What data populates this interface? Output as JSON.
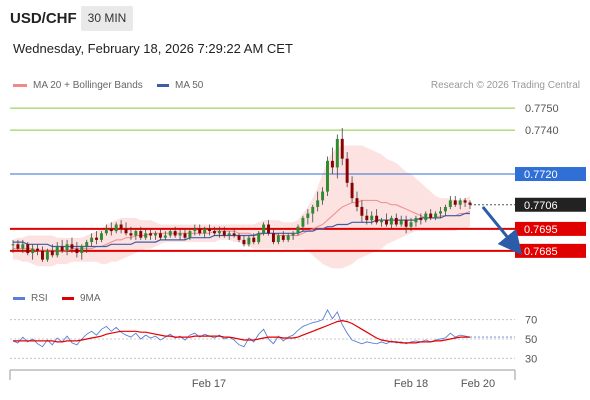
{
  "header": {
    "pair": "USD/CHF",
    "timeframe": "30 MIN",
    "datetime": "Wednesday, February 18, 2026 7:29:22 AM CET"
  },
  "legend": {
    "ma20_label": "MA 20 + Bollinger Bands",
    "ma20_color": "#f08a8a",
    "ma50_label": "MA 50",
    "ma50_color": "#3a5fa8",
    "copyright": "Research © 2026 Trading Central"
  },
  "rsi_legend": {
    "rsi_label": "RSI",
    "rsi_color": "#5b7fd6",
    "ma_label": "9MA",
    "ma_color": "#e00000"
  },
  "chart_data": [
    {
      "type": "candlestick",
      "ylim": [
        0.7674,
        0.7756
      ],
      "x_ticks": [
        "Feb 17",
        "Feb 18",
        "Feb 20"
      ],
      "levels": [
        {
          "value": 0.775,
          "label": "0.7750",
          "color": "#8cc63f",
          "style": "resistance"
        },
        {
          "value": 0.774,
          "label": "0.7740",
          "color": "#8cc63f",
          "style": "resistance"
        },
        {
          "value": 0.772,
          "label": "0.7720",
          "color": "#2f6fd6",
          "style": "pivot"
        },
        {
          "value": 0.7706,
          "label": "0.7706",
          "color": "#222222",
          "style": "last"
        },
        {
          "value": 0.7695,
          "label": "0.7695",
          "color": "#e00000",
          "style": "support"
        },
        {
          "value": 0.7685,
          "label": "0.7685",
          "color": "#e00000",
          "style": "support"
        }
      ],
      "arrow": {
        "from": [
          95,
          0.7705
        ],
        "to": [
          99,
          0.7686
        ],
        "color": "#2a5caa"
      },
      "candles": [
        [
          0.7688,
          0.769,
          0.7684,
          0.7688
        ],
        [
          0.7688,
          0.769,
          0.7685,
          0.7686
        ],
        [
          0.7686,
          0.769,
          0.7684,
          0.7688
        ],
        [
          0.7688,
          0.7689,
          0.7683,
          0.7684
        ],
        [
          0.7684,
          0.7688,
          0.7681,
          0.7686
        ],
        [
          0.7686,
          0.7688,
          0.7683,
          0.7685
        ],
        [
          0.7685,
          0.7687,
          0.768,
          0.7681
        ],
        [
          0.7681,
          0.7686,
          0.768,
          0.7685
        ],
        [
          0.7685,
          0.7688,
          0.7682,
          0.7683
        ],
        [
          0.7683,
          0.7689,
          0.7682,
          0.7687
        ],
        [
          0.7687,
          0.769,
          0.7684,
          0.7685
        ],
        [
          0.7685,
          0.769,
          0.7683,
          0.7688
        ],
        [
          0.7688,
          0.7691,
          0.7684,
          0.7686
        ],
        [
          0.7686,
          0.7689,
          0.7682,
          0.7684
        ],
        [
          0.7684,
          0.7688,
          0.7681,
          0.7687
        ],
        [
          0.7687,
          0.769,
          0.7684,
          0.7689
        ],
        [
          0.7689,
          0.7693,
          0.7687,
          0.7691
        ],
        [
          0.7691,
          0.7694,
          0.7688,
          0.769
        ],
        [
          0.769,
          0.7694,
          0.7689,
          0.7693
        ],
        [
          0.7693,
          0.7697,
          0.7692,
          0.7695
        ],
        [
          0.7695,
          0.7698,
          0.7692,
          0.7694
        ],
        [
          0.7694,
          0.7698,
          0.7693,
          0.7697
        ],
        [
          0.7697,
          0.7699,
          0.7693,
          0.7695
        ],
        [
          0.7695,
          0.7698,
          0.7692,
          0.7693
        ],
        [
          0.7693,
          0.7696,
          0.769,
          0.7692
        ],
        [
          0.7692,
          0.7695,
          0.769,
          0.7694
        ],
        [
          0.7694,
          0.7696,
          0.769,
          0.7691
        ],
        [
          0.7691,
          0.7695,
          0.769,
          0.7693
        ],
        [
          0.7693,
          0.7695,
          0.769,
          0.7692
        ],
        [
          0.7692,
          0.7694,
          0.769,
          0.7693
        ],
        [
          0.7693,
          0.7695,
          0.769,
          0.7691
        ],
        [
          0.7691,
          0.7694,
          0.769,
          0.7692
        ],
        [
          0.7692,
          0.7695,
          0.7691,
          0.7694
        ],
        [
          0.7694,
          0.7696,
          0.7691,
          0.7692
        ],
        [
          0.7692,
          0.7695,
          0.769,
          0.7693
        ],
        [
          0.7693,
          0.7695,
          0.769,
          0.7691
        ],
        [
          0.7691,
          0.7695,
          0.769,
          0.7694
        ],
        [
          0.7694,
          0.7697,
          0.7692,
          0.7695
        ],
        [
          0.7695,
          0.7697,
          0.7692,
          0.7693
        ],
        [
          0.7693,
          0.7696,
          0.7691,
          0.7695
        ],
        [
          0.7695,
          0.7697,
          0.7692,
          0.7694
        ],
        [
          0.7694,
          0.7696,
          0.7692,
          0.7693
        ],
        [
          0.7693,
          0.7696,
          0.7691,
          0.7694
        ],
        [
          0.7694,
          0.7696,
          0.7691,
          0.7692
        ],
        [
          0.7692,
          0.7694,
          0.769,
          0.7693
        ],
        [
          0.7693,
          0.7695,
          0.7691,
          0.7692
        ],
        [
          0.7692,
          0.7693,
          0.7689,
          0.769
        ],
        [
          0.769,
          0.7692,
          0.7687,
          0.7688
        ],
        [
          0.7688,
          0.7692,
          0.7687,
          0.7691
        ],
        [
          0.7691,
          0.7693,
          0.7688,
          0.7689
        ],
        [
          0.7689,
          0.7694,
          0.7688,
          0.7693
        ],
        [
          0.7693,
          0.7698,
          0.7692,
          0.7697
        ],
        [
          0.7697,
          0.7699,
          0.7692,
          0.7693
        ],
        [
          0.7693,
          0.7695,
          0.7688,
          0.7689
        ],
        [
          0.7689,
          0.7693,
          0.7688,
          0.7692
        ],
        [
          0.7692,
          0.7694,
          0.7689,
          0.769
        ],
        [
          0.769,
          0.7693,
          0.7689,
          0.7692
        ],
        [
          0.7692,
          0.7694,
          0.769,
          0.7693
        ],
        [
          0.7693,
          0.7697,
          0.7692,
          0.7696
        ],
        [
          0.7696,
          0.7701,
          0.7694,
          0.77
        ],
        [
          0.77,
          0.7704,
          0.7697,
          0.7702
        ],
        [
          0.7702,
          0.7706,
          0.7698,
          0.7705
        ],
        [
          0.7705,
          0.7712,
          0.7703,
          0.7708
        ],
        [
          0.7708,
          0.7714,
          0.7706,
          0.7712
        ],
        [
          0.7712,
          0.7728,
          0.771,
          0.7726
        ],
        [
          0.7726,
          0.7732,
          0.772,
          0.7723
        ],
        [
          0.7723,
          0.7738,
          0.7718,
          0.7736
        ],
        [
          0.7736,
          0.7741,
          0.7724,
          0.7727
        ],
        [
          0.7727,
          0.773,
          0.7714,
          0.7716
        ],
        [
          0.7716,
          0.7719,
          0.7707,
          0.7709
        ],
        [
          0.7709,
          0.7712,
          0.7703,
          0.7705
        ],
        [
          0.7705,
          0.7708,
          0.7698,
          0.7701
        ],
        [
          0.7701,
          0.7704,
          0.7697,
          0.7699
        ],
        [
          0.7699,
          0.7703,
          0.7697,
          0.7701
        ],
        [
          0.7701,
          0.7704,
          0.7697,
          0.7698
        ],
        [
          0.7698,
          0.77,
          0.7696,
          0.7699
        ],
        [
          0.7699,
          0.7702,
          0.7696,
          0.7697
        ],
        [
          0.7697,
          0.7701,
          0.7695,
          0.77
        ],
        [
          0.77,
          0.7702,
          0.7696,
          0.7697
        ],
        [
          0.7697,
          0.7701,
          0.7696,
          0.7699
        ],
        [
          0.7699,
          0.7701,
          0.7693,
          0.7696
        ],
        [
          0.7696,
          0.77,
          0.7694,
          0.7698
        ],
        [
          0.7698,
          0.7701,
          0.7696,
          0.77
        ],
        [
          0.77,
          0.7702,
          0.7697,
          0.7699
        ],
        [
          0.7699,
          0.7703,
          0.7698,
          0.7702
        ],
        [
          0.7702,
          0.7704,
          0.7699,
          0.77
        ],
        [
          0.77,
          0.7703,
          0.7699,
          0.7702
        ],
        [
          0.7702,
          0.7705,
          0.77,
          0.7703
        ],
        [
          0.7703,
          0.7706,
          0.7701,
          0.7705
        ],
        [
          0.7705,
          0.771,
          0.7704,
          0.7708
        ],
        [
          0.7708,
          0.771,
          0.7705,
          0.7706
        ],
        [
          0.7706,
          0.7709,
          0.7704,
          0.7708
        ],
        [
          0.7708,
          0.7709,
          0.7705,
          0.7707
        ],
        [
          0.7707,
          0.7708,
          0.7704,
          0.7706
        ]
      ],
      "ma20": [
        0.7686,
        0.7686,
        0.7686,
        0.7686,
        0.7686,
        0.7685,
        0.7685,
        0.7685,
        0.7685,
        0.7685,
        0.7685,
        0.7685,
        0.7686,
        0.7686,
        0.7686,
        0.7686,
        0.7686,
        0.7687,
        0.7687,
        0.7688,
        0.7689,
        0.769,
        0.769,
        0.7691,
        0.7691,
        0.7692,
        0.7692,
        0.7692,
        0.7693,
        0.7693,
        0.7693,
        0.7693,
        0.7693,
        0.7693,
        0.7693,
        0.7693,
        0.7693,
        0.7693,
        0.7693,
        0.7693,
        0.7693,
        0.7694,
        0.7694,
        0.7694,
        0.7694,
        0.7694,
        0.7693,
        0.7693,
        0.7693,
        0.7692,
        0.7692,
        0.7693,
        0.7693,
        0.7693,
        0.7692,
        0.7692,
        0.7692,
        0.7692,
        0.7692,
        0.7693,
        0.7694,
        0.7695,
        0.7696,
        0.7697,
        0.7699,
        0.7701,
        0.7703,
        0.7705,
        0.7706,
        0.7707,
        0.7707,
        0.7708,
        0.7708,
        0.7708,
        0.7708,
        0.7707,
        0.7707,
        0.7706,
        0.7706,
        0.7705,
        0.7704,
        0.7703,
        0.7702,
        0.7701,
        0.77,
        0.77,
        0.77,
        0.7701,
        0.7701,
        0.7701,
        0.7701,
        0.7702,
        0.7702,
        0.7703
      ],
      "bb_upper": [
        0.769,
        0.7691,
        0.7691,
        0.7692,
        0.7692,
        0.7692,
        0.7692,
        0.7692,
        0.7692,
        0.7691,
        0.7691,
        0.7691,
        0.7691,
        0.7691,
        0.7691,
        0.7692,
        0.7693,
        0.7694,
        0.7695,
        0.7697,
        0.7698,
        0.7699,
        0.77,
        0.77,
        0.77,
        0.77,
        0.7699,
        0.7699,
        0.7699,
        0.7698,
        0.7697,
        0.7697,
        0.7697,
        0.7697,
        0.7697,
        0.7697,
        0.7697,
        0.7697,
        0.7697,
        0.7697,
        0.7697,
        0.7697,
        0.7697,
        0.7697,
        0.7697,
        0.7697,
        0.7697,
        0.7697,
        0.7697,
        0.7697,
        0.7698,
        0.7699,
        0.7699,
        0.7699,
        0.7699,
        0.7698,
        0.7698,
        0.7698,
        0.7699,
        0.7702,
        0.7705,
        0.7709,
        0.7714,
        0.772,
        0.7726,
        0.773,
        0.7732,
        0.7733,
        0.7733,
        0.7733,
        0.7733,
        0.7733,
        0.7732,
        0.7731,
        0.773,
        0.7729,
        0.7727,
        0.7726,
        0.7725,
        0.7723,
        0.7721,
        0.772,
        0.7718,
        0.7716,
        0.7714,
        0.7712,
        0.771,
        0.7709,
        0.7709,
        0.7709,
        0.7708,
        0.7708,
        0.7709,
        0.771
      ],
      "bb_lower": [
        0.7681,
        0.7681,
        0.768,
        0.768,
        0.7679,
        0.7678,
        0.7678,
        0.7678,
        0.7678,
        0.7679,
        0.7679,
        0.7679,
        0.768,
        0.768,
        0.768,
        0.768,
        0.768,
        0.768,
        0.7679,
        0.7679,
        0.768,
        0.768,
        0.7681,
        0.7682,
        0.7683,
        0.7684,
        0.7685,
        0.7686,
        0.7686,
        0.7687,
        0.7688,
        0.7689,
        0.7689,
        0.7689,
        0.7689,
        0.7689,
        0.7689,
        0.7689,
        0.7689,
        0.7689,
        0.7689,
        0.7689,
        0.769,
        0.769,
        0.769,
        0.7689,
        0.7689,
        0.7688,
        0.7687,
        0.7686,
        0.7686,
        0.7686,
        0.7686,
        0.7686,
        0.7686,
        0.7686,
        0.7686,
        0.7686,
        0.7686,
        0.7686,
        0.7685,
        0.7683,
        0.7681,
        0.7679,
        0.7678,
        0.7677,
        0.7677,
        0.7677,
        0.7678,
        0.7679,
        0.7681,
        0.7682,
        0.7683,
        0.7684,
        0.7685,
        0.7686,
        0.7688,
        0.7689,
        0.769,
        0.7691,
        0.7692,
        0.7693,
        0.7694,
        0.7694,
        0.7694,
        0.7694,
        0.7694,
        0.7694,
        0.7694,
        0.7694,
        0.7694,
        0.7695,
        0.7695,
        0.7696
      ],
      "ma50": [
        0.7689,
        0.7689,
        0.7689,
        0.7688,
        0.7688,
        0.7688,
        0.7688,
        0.7688,
        0.7687,
        0.7687,
        0.7687,
        0.7687,
        0.7687,
        0.7687,
        0.7687,
        0.7687,
        0.7687,
        0.7687,
        0.7687,
        0.7687,
        0.7688,
        0.7688,
        0.7688,
        0.7688,
        0.7688,
        0.7689,
        0.7689,
        0.7689,
        0.7689,
        0.7689,
        0.769,
        0.769,
        0.769,
        0.769,
        0.769,
        0.769,
        0.7691,
        0.7691,
        0.7691,
        0.7691,
        0.7691,
        0.7692,
        0.7692,
        0.7692,
        0.7692,
        0.7692,
        0.7692,
        0.7692,
        0.7692,
        0.7692,
        0.7693,
        0.7693,
        0.7693,
        0.7693,
        0.7693,
        0.7693,
        0.7693,
        0.7693,
        0.7693,
        0.7694,
        0.7694,
        0.7694,
        0.7695,
        0.7695,
        0.7696,
        0.7696,
        0.7697,
        0.7697,
        0.7697,
        0.7698,
        0.7698,
        0.7698,
        0.7698,
        0.7698,
        0.7699,
        0.7699,
        0.7699,
        0.7699,
        0.7699,
        0.7699,
        0.7699,
        0.7699,
        0.7699,
        0.77,
        0.77,
        0.77,
        0.77,
        0.77,
        0.7701,
        0.7701,
        0.7701,
        0.7701,
        0.7702,
        0.7702
      ]
    },
    {
      "type": "line",
      "ylim": [
        20,
        80
      ],
      "y_ticks": [
        70,
        50,
        30
      ],
      "series": [
        {
          "name": "RSI",
          "color": "#5b7fd6",
          "values": [
            48,
            46,
            52,
            47,
            50,
            45,
            42,
            49,
            44,
            51,
            47,
            53,
            46,
            44,
            50,
            55,
            58,
            54,
            60,
            63,
            58,
            62,
            57,
            54,
            52,
            56,
            50,
            54,
            51,
            53,
            49,
            52,
            55,
            51,
            53,
            49,
            54,
            56,
            52,
            55,
            53,
            51,
            54,
            50,
            52,
            49,
            44,
            42,
            51,
            47,
            55,
            60,
            50,
            45,
            53,
            48,
            52,
            54,
            59,
            63,
            65,
            67,
            68,
            70,
            80,
            71,
            78,
            65,
            56,
            49,
            47,
            45,
            47,
            46,
            45,
            47,
            45,
            48,
            46,
            47,
            45,
            47,
            48,
            47,
            49,
            47,
            49,
            50,
            51,
            56,
            52,
            54,
            53,
            52
          ]
        },
        {
          "name": "9MA",
          "color": "#e00000",
          "values": [
            48,
            48,
            48,
            48,
            48,
            48,
            48,
            48,
            48,
            47,
            47,
            48,
            48,
            48,
            49,
            50,
            51,
            52,
            53,
            55,
            56,
            57,
            58,
            58,
            58,
            58,
            57,
            57,
            56,
            55,
            54,
            53,
            53,
            52,
            52,
            52,
            52,
            53,
            53,
            53,
            53,
            53,
            53,
            52,
            52,
            51,
            50,
            49,
            49,
            49,
            50,
            51,
            52,
            52,
            52,
            51,
            51,
            51,
            52,
            54,
            56,
            58,
            60,
            62,
            64,
            66,
            68,
            69,
            68,
            66,
            63,
            60,
            57,
            54,
            51,
            49,
            48,
            47,
            47,
            46,
            46,
            46,
            46,
            47,
            47,
            47,
            48,
            48,
            49,
            50,
            51,
            52,
            52,
            52
          ]
        }
      ]
    }
  ]
}
